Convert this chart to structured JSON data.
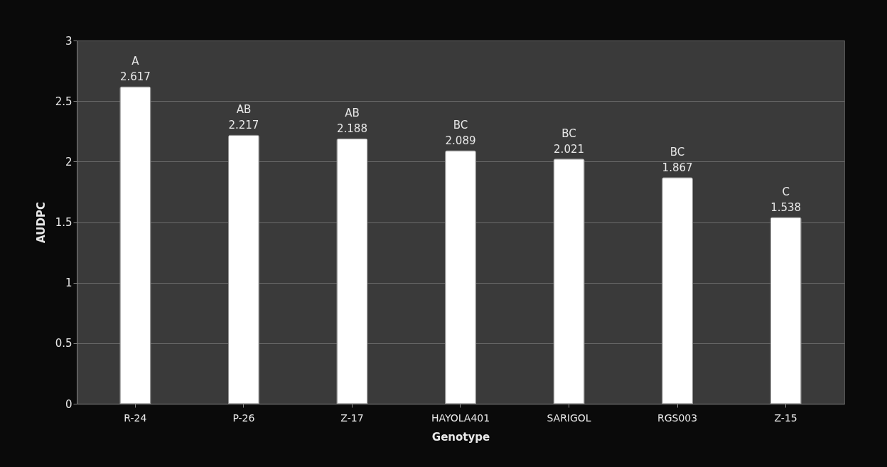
{
  "chart_data": {
    "type": "bar",
    "xlabel": "Genotype",
    "ylabel": "AUDPC",
    "categories": [
      "R-24",
      "P-26",
      "Z-17",
      "HAYOLA401",
      "SARIGOL",
      "RGS003",
      "Z-15"
    ],
    "values": [
      2.617,
      2.217,
      2.188,
      2.089,
      2.021,
      1.867,
      1.538
    ],
    "color": "#ffffff",
    "ylim": [
      0,
      3
    ],
    "yticks": [
      0,
      0.5,
      1,
      1.5,
      2,
      2.5,
      3
    ],
    "grid": "y",
    "data_labels": true,
    "annotations": [
      {
        "text": "A",
        "x": "R-24",
        "y": 2.617
      },
      {
        "text": "AB",
        "x": "P-26",
        "y": 2.217
      },
      {
        "text": "AB",
        "x": "Z-17",
        "y": 2.188
      },
      {
        "text": "BC",
        "x": "HAYOLA401",
        "y": 2.089
      },
      {
        "text": "BC",
        "x": "SARIGOL",
        "y": 2.021
      },
      {
        "text": "BC",
        "x": "RGS003",
        "y": 1.867
      },
      {
        "text": "C",
        "x": "Z-15",
        "y": 1.538
      }
    ]
  }
}
